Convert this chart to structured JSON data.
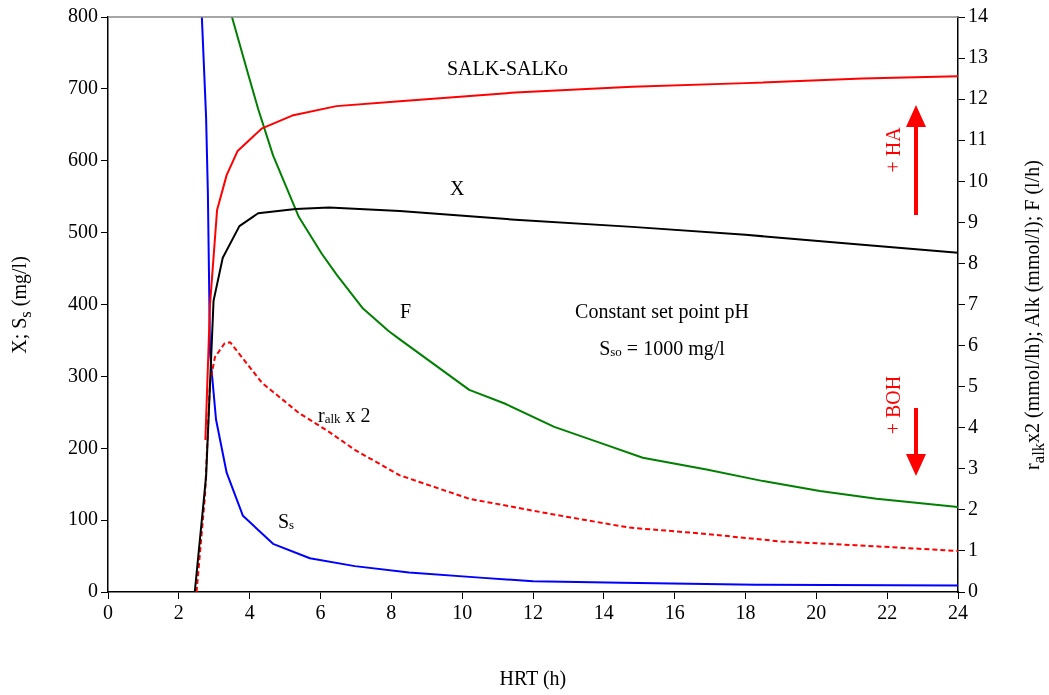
{
  "chart_data": {
    "type": "line",
    "xlabel": "HRT (h)",
    "ylabel": "X; S$_{s}$ (mg/l)",
    "y2label": "r$_{alk}$x2 (mmol/lh); Alk (mmol/l); F (l/h)",
    "xlim": [
      0,
      24
    ],
    "xticks": [
      0,
      2,
      4,
      6,
      8,
      10,
      12,
      14,
      16,
      18,
      20,
      22,
      24
    ],
    "ylim": [
      0,
      800
    ],
    "yticks": [
      0,
      100,
      200,
      300,
      400,
      500,
      600,
      700,
      800
    ],
    "y2lim": [
      0,
      14
    ],
    "y2ticks": [
      0,
      1,
      2,
      3,
      4,
      5,
      6,
      7,
      8,
      9,
      10,
      11,
      12,
      13,
      14
    ],
    "grid": false,
    "legend": false,
    "marker": "none",
    "series": [
      {
        "name": "SALK-SALKo",
        "color": "#ff0000",
        "axis": "y2",
        "x": [
          2.75,
          2.88,
          3.08,
          3.35,
          3.66,
          4.35,
          5.2,
          6.45,
          8.24,
          11.5,
          14.8,
          18,
          21.3,
          24
        ],
        "values": [
          3.7,
          7.0,
          9.3,
          10.15,
          10.74,
          11.29,
          11.6,
          11.83,
          11.95,
          12.16,
          12.3,
          12.39,
          12.5,
          12.56
        ]
      },
      {
        "name": "X",
        "color": "#000000",
        "x": [
          2.45,
          2.77,
          2.98,
          3.24,
          3.71,
          4.24,
          5.3,
          6.24,
          8.24,
          11.5,
          14.8,
          18,
          21.3,
          24
        ],
        "values": [
          0,
          161,
          405,
          465,
          509,
          527,
          533,
          535,
          530,
          518,
          508,
          497,
          483,
          472
        ]
      },
      {
        "name": "F",
        "color": "#008000",
        "axis": "y2",
        "x": [
          3.5,
          3.98,
          4.24,
          4.66,
          5.39,
          6.04,
          6.46,
          7.2,
          7.93,
          8.24,
          10.2,
          11.2,
          12.6,
          14,
          15.1,
          16.9,
          18.5,
          20.1,
          21.7,
          24
        ],
        "values": [
          14,
          12.54,
          11.76,
          10.63,
          9.13,
          8.23,
          7.72,
          6.9,
          6.35,
          6.15,
          4.92,
          4.59,
          4.02,
          3.6,
          3.27,
          2.98,
          2.7,
          2.46,
          2.27,
          2.07
        ]
      },
      {
        "name": "r$_{alk}$ x 2",
        "color": "#ff0000",
        "axis": "y2",
        "line_style": "dashed",
        "x": [
          2.5,
          2.74,
          2.88,
          3.02,
          3.29,
          3.45,
          4.35,
          5.39,
          6.24,
          6.97,
          8.24,
          10.2,
          12.5,
          14.7,
          16.8,
          19,
          21.1,
          24
        ],
        "values": [
          0,
          2.36,
          5.1,
          5.72,
          6.05,
          6.08,
          5.09,
          4.36,
          3.9,
          3.46,
          2.84,
          2.27,
          1.9,
          1.57,
          1.42,
          1.23,
          1.14,
          1.0
        ]
      },
      {
        "name": "S$_{s}$",
        "color": "#0000ff",
        "x": [
          2.65,
          2.77,
          2.82,
          2.85,
          2.88,
          3.05,
          3.35,
          3.81,
          4.66,
          5.7,
          6.97,
          8.5,
          10.5,
          12,
          14.5,
          18.3,
          24
        ],
        "values": [
          800,
          660,
          555,
          447,
          333,
          240,
          166,
          106,
          67,
          47,
          36,
          27,
          20,
          15,
          13,
          10,
          9
        ]
      }
    ],
    "annotations": [
      "Constant set point pH",
      "S$_{so}$ = 1000 mg/l",
      "+ HA",
      "+ BOH"
    ]
  }
}
